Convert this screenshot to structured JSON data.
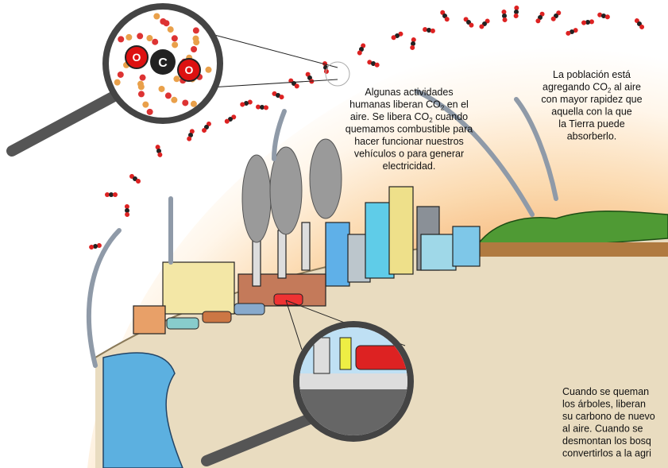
{
  "magnifier_molecule": {
    "atoms": [
      "O",
      "C",
      "O"
    ]
  },
  "human_activity_text": {
    "lines": [
      [
        "Algunas actividades"
      ],
      [
        "humanas liberan CO",
        "2",
        " en el"
      ],
      [
        "aire. Se libera CO",
        "2",
        " cuando"
      ],
      [
        "quemamos combustible para"
      ],
      [
        "hacer funcionar nuestros"
      ],
      [
        "vehículos o para generar"
      ],
      [
        "electricidad."
      ]
    ]
  },
  "population_text": {
    "lines": [
      [
        "La población está"
      ],
      [
        "agregando CO",
        "2",
        " al aire"
      ],
      [
        "con mayor rapidez que"
      ],
      [
        "aquella con la que"
      ],
      [
        "la Tierra puede"
      ],
      [
        "absorberlo."
      ]
    ]
  },
  "trees_text": {
    "lines": [
      [
        "Cuando se queman"
      ],
      [
        "los árboles, liberan"
      ],
      [
        "su carbono de nuevo"
      ],
      [
        "al aire. Cuando se"
      ],
      [
        "desmontan los bosq"
      ],
      [
        "convertirlos a la agri"
      ]
    ]
  }
}
